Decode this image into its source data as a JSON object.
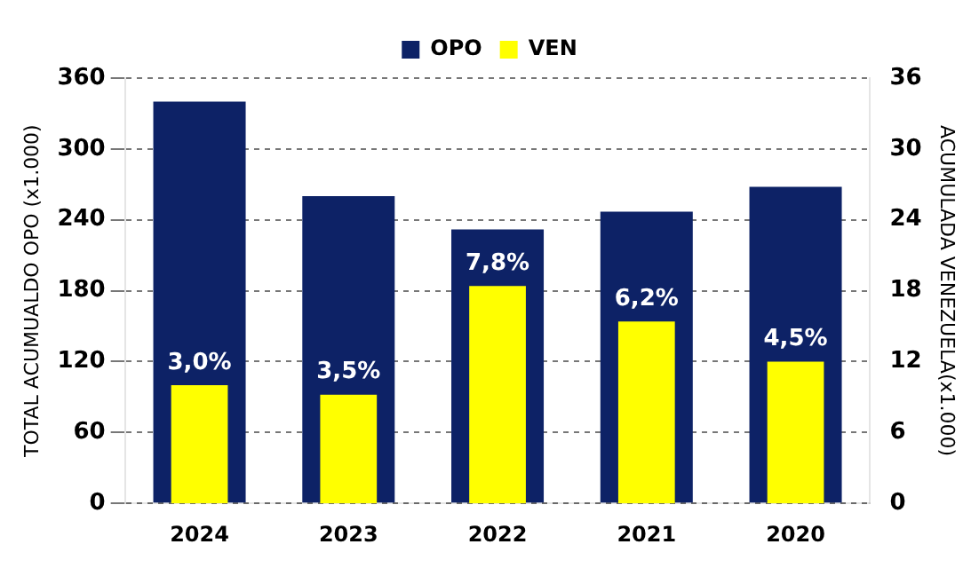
{
  "chart_data": {
    "type": "bar",
    "categories": [
      "2024",
      "2023",
      "2022",
      "2021",
      "2020"
    ],
    "ylabel": "TOTAL ACUMUALDO OPO (x1.000)",
    "y2label": "ACUMULADA VENEZUELA(x1.000)",
    "series": [
      {
        "name": "OPO",
        "color": "#0d2266",
        "values": [
          340,
          260,
          232,
          247,
          268
        ]
      },
      {
        "name": "VEN",
        "color": "#ffff00",
        "axis": "y2",
        "values": [
          10.0,
          9.2,
          18.4,
          15.4,
          12.0
        ]
      }
    ],
    "annotations": [
      "3,0%",
      "3,5%",
      "7,8%",
      "6,2%",
      "4,5%"
    ],
    "ylim": [
      0,
      360
    ],
    "yticks": [
      0,
      60,
      120,
      180,
      240,
      300,
      360
    ],
    "y2lim": [
      0,
      36
    ],
    "y2ticks": [
      0,
      6,
      12,
      18,
      24,
      30,
      36
    ],
    "grid": "y",
    "legend": "top"
  }
}
